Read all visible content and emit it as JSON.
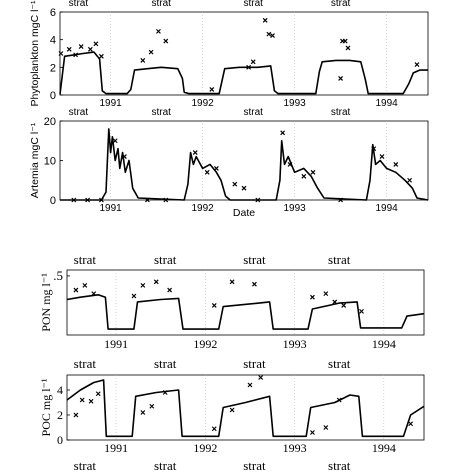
{
  "chart_data": [
    {
      "type": "line",
      "panel": "phytoplankton",
      "ylabel": "Phytoplankton mgC l⁻¹",
      "xlabel": "",
      "ylim": [
        0,
        6
      ],
      "yticks": [
        "0",
        "2",
        "4",
        "6"
      ],
      "year_labels": [
        "1991",
        "1992",
        "1993",
        "1994"
      ],
      "strat_labels": [
        "strat",
        "strat",
        "strat",
        "strat"
      ],
      "model_series": [
        {
          "t": 1990.45,
          "v": 0.05
        },
        {
          "t": 1990.5,
          "v": 2.8
        },
        {
          "t": 1990.6,
          "v": 2.9
        },
        {
          "t": 1990.7,
          "v": 3.0
        },
        {
          "t": 1990.82,
          "v": 3.1
        },
        {
          "t": 1990.88,
          "v": 2.6
        },
        {
          "t": 1990.91,
          "v": 0.3
        },
        {
          "t": 1990.95,
          "v": 0.1
        },
        {
          "t": 1991.18,
          "v": 0.1
        },
        {
          "t": 1991.22,
          "v": 0.4
        },
        {
          "t": 1991.26,
          "v": 1.8
        },
        {
          "t": 1991.4,
          "v": 1.9
        },
        {
          "t": 1991.55,
          "v": 2.0
        },
        {
          "t": 1991.73,
          "v": 1.9
        },
        {
          "t": 1991.78,
          "v": 1.2
        },
        {
          "t": 1991.8,
          "v": 0.2
        },
        {
          "t": 1991.85,
          "v": 0.1
        },
        {
          "t": 1992.18,
          "v": 0.1
        },
        {
          "t": 1992.24,
          "v": 1.9
        },
        {
          "t": 1992.4,
          "v": 2.0
        },
        {
          "t": 1992.6,
          "v": 2.0
        },
        {
          "t": 1992.74,
          "v": 2.1
        },
        {
          "t": 1992.78,
          "v": 0.3
        },
        {
          "t": 1992.82,
          "v": 0.1
        },
        {
          "t": 1993.23,
          "v": 0.1
        },
        {
          "t": 1993.27,
          "v": 1.7
        },
        {
          "t": 1993.3,
          "v": 2.4
        },
        {
          "t": 1993.45,
          "v": 2.5
        },
        {
          "t": 1993.6,
          "v": 2.5
        },
        {
          "t": 1993.72,
          "v": 2.4
        },
        {
          "t": 1993.77,
          "v": 1.1
        },
        {
          "t": 1993.8,
          "v": 0.1
        },
        {
          "t": 1994.18,
          "v": 0.1
        },
        {
          "t": 1994.24,
          "v": 0.8
        },
        {
          "t": 1994.29,
          "v": 1.6
        },
        {
          "t": 1994.36,
          "v": 1.8
        },
        {
          "t": 1994.45,
          "v": 1.8
        }
      ],
      "observations": [
        {
          "t": 1990.46,
          "v": 3.0
        },
        {
          "t": 1990.55,
          "v": 3.3
        },
        {
          "t": 1990.62,
          "v": 2.9
        },
        {
          "t": 1990.68,
          "v": 3.5
        },
        {
          "t": 1990.78,
          "v": 3.3
        },
        {
          "t": 1990.84,
          "v": 3.7
        },
        {
          "t": 1990.9,
          "v": 2.8
        },
        {
          "t": 1991.35,
          "v": 2.5
        },
        {
          "t": 1991.44,
          "v": 3.1
        },
        {
          "t": 1991.52,
          "v": 4.6
        },
        {
          "t": 1991.6,
          "v": 3.9
        },
        {
          "t": 1992.1,
          "v": 0.4
        },
        {
          "t": 1992.5,
          "v": 2.0
        },
        {
          "t": 1992.55,
          "v": 2.4
        },
        {
          "t": 1992.68,
          "v": 5.4
        },
        {
          "t": 1992.72,
          "v": 4.4
        },
        {
          "t": 1992.76,
          "v": 4.3
        },
        {
          "t": 1993.5,
          "v": 1.2
        },
        {
          "t": 1993.52,
          "v": 3.9
        },
        {
          "t": 1993.55,
          "v": 3.9
        },
        {
          "t": 1993.58,
          "v": 3.4
        },
        {
          "t": 1994.33,
          "v": 2.2
        }
      ]
    },
    {
      "type": "line",
      "panel": "artemia",
      "ylabel": "Artemia mgC l⁻¹",
      "xlabel": "Date",
      "ylim": [
        0,
        20
      ],
      "yticks": [
        "0",
        "10",
        "20"
      ],
      "year_labels": [
        "1991",
        "1992",
        "1993",
        "1994"
      ],
      "strat_labels": [
        "strat",
        "strat",
        "strat",
        "strat"
      ],
      "model_series": [
        {
          "t": 1990.45,
          "v": 0
        },
        {
          "t": 1990.9,
          "v": 0
        },
        {
          "t": 1990.95,
          "v": 2
        },
        {
          "t": 1990.98,
          "v": 18
        },
        {
          "t": 1991.0,
          "v": 12
        },
        {
          "t": 1991.02,
          "v": 16
        },
        {
          "t": 1991.05,
          "v": 10
        },
        {
          "t": 1991.08,
          "v": 13
        },
        {
          "t": 1991.1,
          "v": 8
        },
        {
          "t": 1991.13,
          "v": 12
        },
        {
          "t": 1991.16,
          "v": 7
        },
        {
          "t": 1991.2,
          "v": 10
        },
        {
          "t": 1991.24,
          "v": 3
        },
        {
          "t": 1991.3,
          "v": 0.5
        },
        {
          "t": 1991.8,
          "v": 0
        },
        {
          "t": 1991.84,
          "v": 4
        },
        {
          "t": 1991.87,
          "v": 12
        },
        {
          "t": 1991.9,
          "v": 9
        },
        {
          "t": 1991.93,
          "v": 11
        },
        {
          "t": 1992.0,
          "v": 8
        },
        {
          "t": 1992.08,
          "v": 9
        },
        {
          "t": 1992.15,
          "v": 7
        },
        {
          "t": 1992.2,
          "v": 5
        },
        {
          "t": 1992.25,
          "v": 1
        },
        {
          "t": 1992.3,
          "v": 0
        },
        {
          "t": 1992.8,
          "v": 0
        },
        {
          "t": 1992.84,
          "v": 5
        },
        {
          "t": 1992.86,
          "v": 15
        },
        {
          "t": 1992.89,
          "v": 9
        },
        {
          "t": 1992.93,
          "v": 11
        },
        {
          "t": 1993.0,
          "v": 7
        },
        {
          "t": 1993.1,
          "v": 8
        },
        {
          "t": 1993.18,
          "v": 6
        },
        {
          "t": 1993.25,
          "v": 3
        },
        {
          "t": 1993.32,
          "v": 0.5
        },
        {
          "t": 1993.78,
          "v": 0
        },
        {
          "t": 1993.82,
          "v": 5
        },
        {
          "t": 1993.85,
          "v": 14
        },
        {
          "t": 1993.88,
          "v": 9
        },
        {
          "t": 1993.93,
          "v": 10
        },
        {
          "t": 1994.0,
          "v": 8
        },
        {
          "t": 1994.1,
          "v": 7
        },
        {
          "t": 1994.2,
          "v": 5
        },
        {
          "t": 1994.28,
          "v": 3
        },
        {
          "t": 1994.33,
          "v": 0.5
        },
        {
          "t": 1994.45,
          "v": 0
        }
      ],
      "observations": [
        {
          "t": 1990.6,
          "v": 0
        },
        {
          "t": 1990.75,
          "v": 0
        },
        {
          "t": 1990.9,
          "v": 0
        },
        {
          "t": 1991.05,
          "v": 15
        },
        {
          "t": 1991.15,
          "v": 11
        },
        {
          "t": 1991.4,
          "v": 0
        },
        {
          "t": 1991.6,
          "v": 0
        },
        {
          "t": 1991.92,
          "v": 12
        },
        {
          "t": 1992.05,
          "v": 7
        },
        {
          "t": 1992.15,
          "v": 8
        },
        {
          "t": 1992.35,
          "v": 4
        },
        {
          "t": 1992.45,
          "v": 3
        },
        {
          "t": 1992.6,
          "v": 0
        },
        {
          "t": 1992.87,
          "v": 17
        },
        {
          "t": 1992.95,
          "v": 9
        },
        {
          "t": 1993.1,
          "v": 6
        },
        {
          "t": 1993.2,
          "v": 7
        },
        {
          "t": 1993.5,
          "v": 0
        },
        {
          "t": 1993.86,
          "v": 13
        },
        {
          "t": 1993.95,
          "v": 11
        },
        {
          "t": 1994.1,
          "v": 9
        },
        {
          "t": 1994.25,
          "v": 5
        }
      ]
    },
    {
      "type": "line",
      "panel": "pon",
      "ylabel": "PON mg l⁻¹",
      "xlabel": "",
      "ylim": [
        0,
        0.55
      ],
      "yticks": [
        ".5"
      ],
      "year_labels": [
        "1991",
        "1992",
        "1993",
        "1994"
      ],
      "strat_labels": [
        "strat",
        "strat",
        "strat",
        "strat"
      ],
      "model_series": [
        {
          "t": 1990.45,
          "v": 0.3
        },
        {
          "t": 1990.6,
          "v": 0.32
        },
        {
          "t": 1990.8,
          "v": 0.34
        },
        {
          "t": 1990.88,
          "v": 0.32
        },
        {
          "t": 1990.91,
          "v": 0.05
        },
        {
          "t": 1991.2,
          "v": 0.05
        },
        {
          "t": 1991.24,
          "v": 0.28
        },
        {
          "t": 1991.5,
          "v": 0.3
        },
        {
          "t": 1991.7,
          "v": 0.31
        },
        {
          "t": 1991.75,
          "v": 0.05
        },
        {
          "t": 1992.15,
          "v": 0.05
        },
        {
          "t": 1992.2,
          "v": 0.24
        },
        {
          "t": 1992.6,
          "v": 0.27
        },
        {
          "t": 1992.72,
          "v": 0.28
        },
        {
          "t": 1992.76,
          "v": 0.05
        },
        {
          "t": 1993.15,
          "v": 0.05
        },
        {
          "t": 1993.2,
          "v": 0.22
        },
        {
          "t": 1993.5,
          "v": 0.27
        },
        {
          "t": 1993.7,
          "v": 0.28
        },
        {
          "t": 1993.74,
          "v": 0.06
        },
        {
          "t": 1994.2,
          "v": 0.06
        },
        {
          "t": 1994.26,
          "v": 0.16
        },
        {
          "t": 1994.45,
          "v": 0.18
        }
      ],
      "observations": [
        {
          "t": 1990.55,
          "v": 0.38
        },
        {
          "t": 1990.65,
          "v": 0.42
        },
        {
          "t": 1990.75,
          "v": 0.35
        },
        {
          "t": 1991.2,
          "v": 0.33
        },
        {
          "t": 1991.3,
          "v": 0.42
        },
        {
          "t": 1991.45,
          "v": 0.45
        },
        {
          "t": 1991.6,
          "v": 0.38
        },
        {
          "t": 1992.1,
          "v": 0.25
        },
        {
          "t": 1992.3,
          "v": 0.45
        },
        {
          "t": 1992.55,
          "v": 0.43
        },
        {
          "t": 1993.2,
          "v": 0.32
        },
        {
          "t": 1993.35,
          "v": 0.35
        },
        {
          "t": 1993.45,
          "v": 0.28
        },
        {
          "t": 1993.55,
          "v": 0.25
        },
        {
          "t": 1993.75,
          "v": 0.2
        }
      ]
    },
    {
      "type": "line",
      "panel": "poc",
      "ylabel": "POC mg l⁻¹",
      "xlabel": "",
      "ylim": [
        0,
        5.2
      ],
      "yticks": [
        "0",
        "2",
        "4"
      ],
      "year_labels": [
        "1991",
        "1992",
        "1993",
        "1994"
      ],
      "strat_labels": [
        "strat",
        "strat",
        "strat",
        "strat"
      ],
      "bottom_year_labels": [
        "1991",
        "1992",
        "1993",
        "1994"
      ],
      "bottom_strat_labels": [
        "strat",
        "strat",
        "strat",
        "strat"
      ],
      "model_series": [
        {
          "t": 1990.45,
          "v": 3.2
        },
        {
          "t": 1990.6,
          "v": 4.0
        },
        {
          "t": 1990.75,
          "v": 4.6
        },
        {
          "t": 1990.86,
          "v": 4.8
        },
        {
          "t": 1990.89,
          "v": 0.3
        },
        {
          "t": 1991.18,
          "v": 0.3
        },
        {
          "t": 1991.22,
          "v": 3.5
        },
        {
          "t": 1991.45,
          "v": 3.8
        },
        {
          "t": 1991.7,
          "v": 4.0
        },
        {
          "t": 1991.74,
          "v": 0.3
        },
        {
          "t": 1992.15,
          "v": 0.3
        },
        {
          "t": 1992.2,
          "v": 2.6
        },
        {
          "t": 1992.45,
          "v": 3.0
        },
        {
          "t": 1992.72,
          "v": 3.5
        },
        {
          "t": 1992.76,
          "v": 0.3
        },
        {
          "t": 1993.13,
          "v": 0.3
        },
        {
          "t": 1993.18,
          "v": 2.6
        },
        {
          "t": 1993.45,
          "v": 3.0
        },
        {
          "t": 1993.62,
          "v": 3.6
        },
        {
          "t": 1993.72,
          "v": 3.5
        },
        {
          "t": 1993.76,
          "v": 0.3
        },
        {
          "t": 1994.22,
          "v": 0.3
        },
        {
          "t": 1994.3,
          "v": 2.0
        },
        {
          "t": 1994.45,
          "v": 2.7
        }
      ],
      "observations": [
        {
          "t": 1990.55,
          "v": 2.0
        },
        {
          "t": 1990.62,
          "v": 3.2
        },
        {
          "t": 1990.72,
          "v": 3.1
        },
        {
          "t": 1990.8,
          "v": 3.7
        },
        {
          "t": 1991.3,
          "v": 2.2
        },
        {
          "t": 1991.4,
          "v": 2.7
        },
        {
          "t": 1991.55,
          "v": 3.8
        },
        {
          "t": 1992.1,
          "v": 0.9
        },
        {
          "t": 1992.3,
          "v": 2.4
        },
        {
          "t": 1992.5,
          "v": 4.4
        },
        {
          "t": 1992.62,
          "v": 5.0
        },
        {
          "t": 1993.2,
          "v": 0.6
        },
        {
          "t": 1993.35,
          "v": 1.0
        },
        {
          "t": 1993.5,
          "v": 3.2
        },
        {
          "t": 1994.3,
          "v": 1.3
        }
      ]
    }
  ]
}
